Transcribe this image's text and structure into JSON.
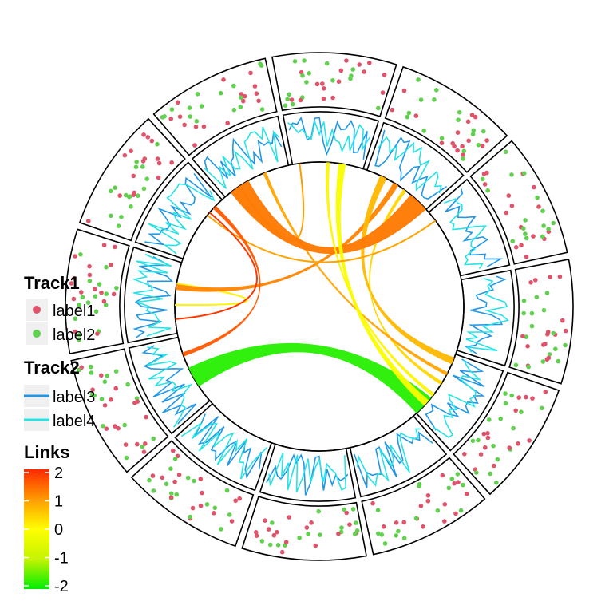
{
  "chart_data": {
    "type": "chord",
    "sectors": 12,
    "tracks": [
      {
        "name": "Track1",
        "kind": "points",
        "series": [
          {
            "label": "label1",
            "color": "#DF536B"
          },
          {
            "label": "label2",
            "color": "#61D04F"
          }
        ],
        "points_per_sector": 16
      },
      {
        "name": "Track2",
        "kind": "lines",
        "series": [
          {
            "label": "label3",
            "color": "#2297E6"
          },
          {
            "label": "label4",
            "color": "#28E2E5"
          }
        ],
        "points_per_sector": 20
      }
    ],
    "links": [
      {
        "from": [
          11,
          0.4
        ],
        "to": [
          11,
          0.7
        ],
        "value": 0.1,
        "width": 0.03
      },
      {
        "from": [
          6,
          0.85
        ],
        "to": [
          10,
          0.4
        ],
        "value": -1.8,
        "width": 0.3
      },
      {
        "from": [
          3,
          0.45
        ],
        "to": [
          11,
          0.65
        ],
        "value": 1.2,
        "width": 0.08
      },
      {
        "from": [
          3,
          0.25
        ],
        "to": [
          6,
          0.1
        ],
        "value": 0.7,
        "width": 0.1
      },
      {
        "from": [
          3,
          0.6
        ],
        "to": [
          6,
          0.45
        ],
        "value": 0.4,
        "width": 0.05
      },
      {
        "from": [
          1,
          0.65
        ],
        "to": [
          6,
          0.3
        ],
        "value": 0.9,
        "width": 0.05
      },
      {
        "from": [
          1,
          0.25
        ],
        "to": [
          2,
          0.1
        ],
        "value": 1.0,
        "width": 0.02
      },
      {
        "from": [
          1,
          0.25
        ],
        "to": [
          3,
          0.85
        ],
        "value": 1.3,
        "width": 0.3
      },
      {
        "from": [
          2,
          0.7
        ],
        "to": [
          6,
          0.8
        ],
        "value": -0.1,
        "width": 0.1
      },
      {
        "from": [
          2,
          0.5
        ],
        "to": [
          6,
          0.65
        ],
        "value": 0.1,
        "width": 0.05
      },
      {
        "from": [
          0,
          0.7
        ],
        "to": [
          4,
          0.15
        ],
        "value": 0.9,
        "width": 0.03
      },
      {
        "from": [
          0,
          0.75
        ],
        "to": [
          11,
          0.2
        ],
        "value": 1.9,
        "width": 0.03
      },
      {
        "from": [
          0,
          0.85
        ],
        "to": [
          10,
          0.75
        ],
        "value": 1.6,
        "width": 0.06
      }
    ],
    "legend": {
      "position": "left",
      "links_title": "Links",
      "links_ticks": [
        "2",
        "1",
        "0",
        "-1",
        "-2"
      ],
      "color_scale": [
        {
          "value": 2,
          "color": "#FF2A00"
        },
        {
          "value": 1,
          "color": "#FF9A00"
        },
        {
          "value": 0,
          "color": "#FFFF00"
        },
        {
          "value": -1,
          "color": "#C5F300"
        },
        {
          "value": -2,
          "color": "#00EE00"
        }
      ]
    }
  }
}
